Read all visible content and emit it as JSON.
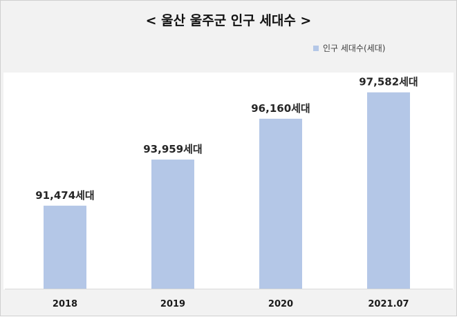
{
  "chart_data": {
    "type": "bar",
    "title": "< 울산 울주군 인구 세대수 >",
    "categories": [
      "2018",
      "2019",
      "2020",
      "2021.07"
    ],
    "series": [
      {
        "name": "인구 세대수(세대)",
        "values": [
          91474,
          93959,
          96160,
          97582
        ],
        "value_labels": [
          "91,474세대",
          "93,959세대",
          "96,160세대",
          "97,582세대"
        ],
        "color": "#b4c7e7"
      }
    ],
    "xlabel": "",
    "ylabel": "",
    "ylim": [
      87000,
      98800
    ],
    "grid": false,
    "legend_position": "top-right"
  }
}
